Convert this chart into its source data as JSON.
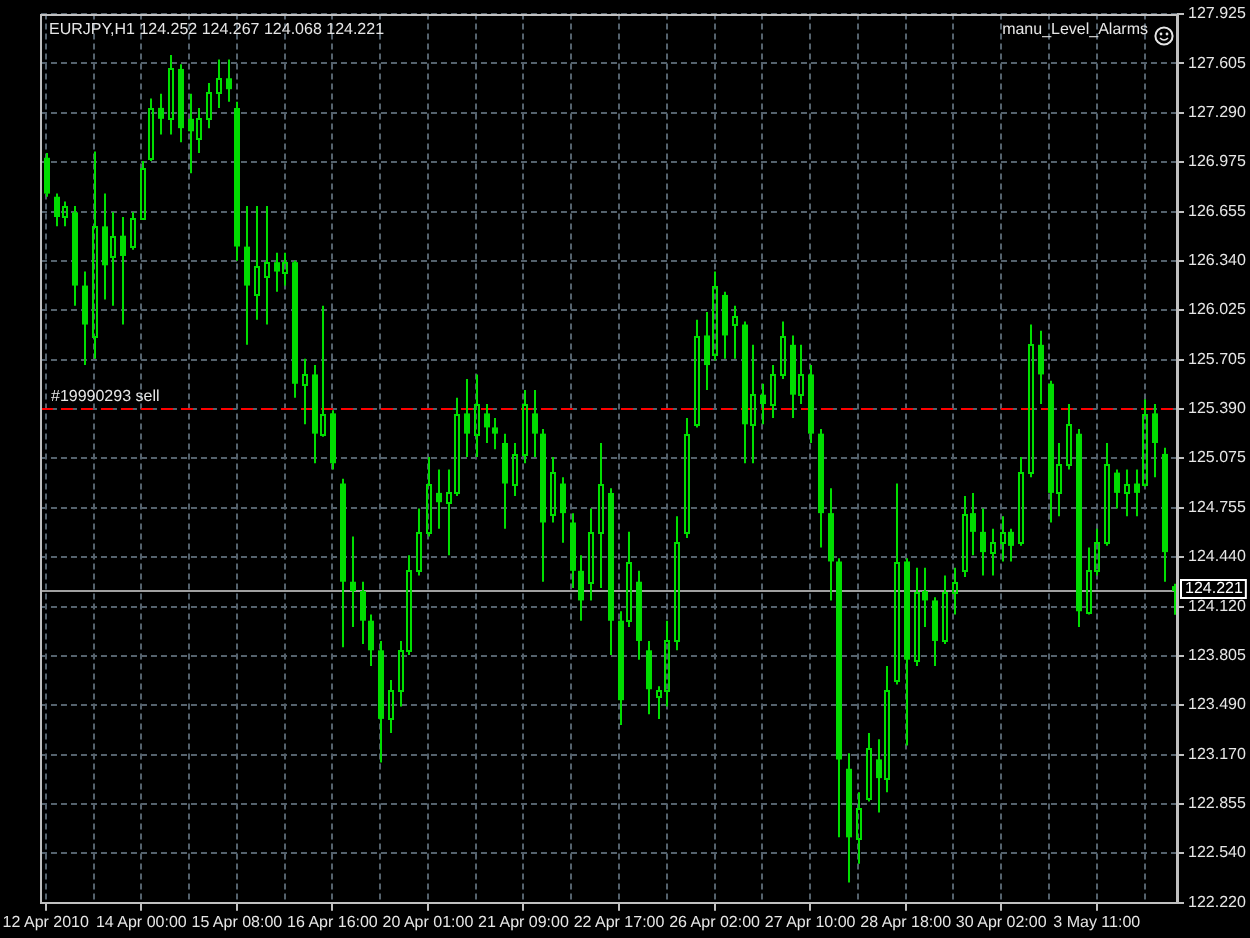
{
  "chart_data": {
    "type": "candlestick",
    "title": "EURJPY,H1 124.252 124.267 124.068 124.221",
    "annotations": [
      "manu_Level_Alarms"
    ],
    "categories": [
      "12 Apr 2010",
      null,
      null,
      null,
      null,
      null,
      null,
      null,
      null,
      null,
      "14 Apr 00:00",
      null,
      null,
      null,
      null,
      null,
      null,
      null,
      null,
      null,
      "15 Apr 08:00",
      null,
      null,
      null,
      null,
      null,
      null,
      null,
      null,
      null,
      "16 Apr 16:00",
      null,
      null,
      null,
      null,
      null,
      null,
      null,
      null,
      null,
      "20 Apr 01:00",
      null,
      null,
      null,
      null,
      null,
      null,
      null,
      null,
      null,
      "21 Apr 09:00",
      null,
      null,
      null,
      null,
      null,
      null,
      null,
      null,
      null,
      "22 Apr 17:00",
      null,
      null,
      null,
      null,
      null,
      null,
      null,
      null,
      null,
      "26 Apr 02:00",
      null,
      null,
      null,
      null,
      null,
      null,
      null,
      null,
      null,
      "27 Apr 10:00",
      null,
      null,
      null,
      null,
      null,
      null,
      null,
      null,
      null,
      "28 Apr 18:00",
      null,
      null,
      null,
      null,
      null,
      null,
      null,
      null,
      null,
      "30 Apr 02:00",
      null,
      null,
      null,
      null,
      null,
      null,
      null,
      null,
      null,
      "3 May 11:00",
      null,
      null,
      null,
      null,
      null,
      null,
      null,
      null
    ],
    "ohlc": [
      [
        127.0,
        127.03,
        126.75,
        126.77
      ],
      [
        126.75,
        126.77,
        126.56,
        126.62
      ],
      [
        126.63,
        126.72,
        126.56,
        126.69
      ],
      [
        126.65,
        126.69,
        126.05,
        126.18
      ],
      [
        126.18,
        126.27,
        125.67,
        125.93
      ],
      [
        125.86,
        127.04,
        125.71,
        126.56
      ],
      [
        126.56,
        126.77,
        126.09,
        126.31
      ],
      [
        126.37,
        126.65,
        126.05,
        126.5
      ],
      [
        126.5,
        126.62,
        125.93,
        126.37
      ],
      [
        126.43,
        126.65,
        126.41,
        126.61
      ],
      [
        126.62,
        126.98,
        126.6,
        126.94
      ],
      [
        127.0,
        127.38,
        126.98,
        127.32
      ],
      [
        127.32,
        127.41,
        127.15,
        127.25
      ],
      [
        127.25,
        127.66,
        127.15,
        127.57
      ],
      [
        127.57,
        127.6,
        127.1,
        127.19
      ],
      [
        127.25,
        127.41,
        126.9,
        127.17
      ],
      [
        127.13,
        127.32,
        127.03,
        127.25
      ],
      [
        127.25,
        127.48,
        127.19,
        127.42
      ],
      [
        127.42,
        127.63,
        127.32,
        127.51
      ],
      [
        127.51,
        127.63,
        127.36,
        127.44
      ],
      [
        127.32,
        127.36,
        126.34,
        126.43
      ],
      [
        126.43,
        126.69,
        125.8,
        126.18
      ],
      [
        126.12,
        126.69,
        125.96,
        126.31
      ],
      [
        126.24,
        126.69,
        125.93,
        126.33
      ],
      [
        126.33,
        126.39,
        126.14,
        126.27
      ],
      [
        126.27,
        126.39,
        126.18,
        126.33
      ],
      [
        126.33,
        126.34,
        125.46,
        125.55
      ],
      [
        125.55,
        125.71,
        125.29,
        125.61
      ],
      [
        125.61,
        125.67,
        125.04,
        125.23
      ],
      [
        125.23,
        126.05,
        125.21,
        125.36
      ],
      [
        125.36,
        125.38,
        125.0,
        125.04
      ],
      [
        124.91,
        124.94,
        123.86,
        124.28
      ],
      [
        124.28,
        124.57,
        123.99,
        124.22
      ],
      [
        124.22,
        124.28,
        123.88,
        124.03
      ],
      [
        124.03,
        124.07,
        123.74,
        123.84
      ],
      [
        123.84,
        123.9,
        123.12,
        123.4
      ],
      [
        123.4,
        123.65,
        123.31,
        123.59
      ],
      [
        123.59,
        123.9,
        123.48,
        123.84
      ],
      [
        123.84,
        124.45,
        123.81,
        124.35
      ],
      [
        124.35,
        124.75,
        124.32,
        124.6
      ],
      [
        124.6,
        125.08,
        124.57,
        124.91
      ],
      [
        124.85,
        125.0,
        124.62,
        124.79
      ],
      [
        124.79,
        125.0,
        124.45,
        124.85
      ],
      [
        124.85,
        125.46,
        124.83,
        125.36
      ],
      [
        125.36,
        125.58,
        125.08,
        125.23
      ],
      [
        125.23,
        125.61,
        125.08,
        125.42
      ],
      [
        125.36,
        125.42,
        125.17,
        125.27
      ],
      [
        125.27,
        125.33,
        125.13,
        125.23
      ],
      [
        125.17,
        125.23,
        124.62,
        124.91
      ],
      [
        124.91,
        125.17,
        124.83,
        125.1
      ],
      [
        125.1,
        125.51,
        125.04,
        125.42
      ],
      [
        125.36,
        125.51,
        125.08,
        125.23
      ],
      [
        125.23,
        125.26,
        124.28,
        124.66
      ],
      [
        124.72,
        125.08,
        124.66,
        124.98
      ],
      [
        124.91,
        124.95,
        124.53,
        124.72
      ],
      [
        124.66,
        124.72,
        124.24,
        124.35
      ],
      [
        124.35,
        124.45,
        124.03,
        124.16
      ],
      [
        124.28,
        124.75,
        124.16,
        124.6
      ],
      [
        124.6,
        125.17,
        124.24,
        124.91
      ],
      [
        124.85,
        124.88,
        123.81,
        124.03
      ],
      [
        124.03,
        124.09,
        123.36,
        123.52
      ],
      [
        124.03,
        124.6,
        123.99,
        124.41
      ],
      [
        124.28,
        124.35,
        123.78,
        123.9
      ],
      [
        123.84,
        123.9,
        123.43,
        123.59
      ],
      [
        123.55,
        123.61,
        123.4,
        123.59
      ],
      [
        123.59,
        124.03,
        123.48,
        123.9
      ],
      [
        123.9,
        124.7,
        123.84,
        124.53
      ],
      [
        124.6,
        125.33,
        124.56,
        125.23
      ],
      [
        125.29,
        125.96,
        125.27,
        125.86
      ],
      [
        125.86,
        126.01,
        125.51,
        125.67
      ],
      [
        125.74,
        126.27,
        125.7,
        126.18
      ],
      [
        126.12,
        126.14,
        125.71,
        125.86
      ],
      [
        125.93,
        126.05,
        125.71,
        125.99
      ],
      [
        125.93,
        125.95,
        125.04,
        125.29
      ],
      [
        125.29,
        125.8,
        125.04,
        125.48
      ],
      [
        125.48,
        125.55,
        125.29,
        125.42
      ],
      [
        125.42,
        125.67,
        125.33,
        125.61
      ],
      [
        125.61,
        125.95,
        125.58,
        125.86
      ],
      [
        125.8,
        125.86,
        125.33,
        125.48
      ],
      [
        125.48,
        125.8,
        125.42,
        125.61
      ],
      [
        125.61,
        125.67,
        125.17,
        125.23
      ],
      [
        125.23,
        125.26,
        124.5,
        124.72
      ],
      [
        124.72,
        124.88,
        124.16,
        124.41
      ],
      [
        124.41,
        124.43,
        122.64,
        123.14
      ],
      [
        123.08,
        123.18,
        122.35,
        122.64
      ],
      [
        122.64,
        122.93,
        122.47,
        122.83
      ],
      [
        122.89,
        123.31,
        122.87,
        123.21
      ],
      [
        123.14,
        123.27,
        122.8,
        123.02
      ],
      [
        123.02,
        123.74,
        122.93,
        123.59
      ],
      [
        123.65,
        124.91,
        123.62,
        124.41
      ],
      [
        124.41,
        124.43,
        123.23,
        123.78
      ],
      [
        123.78,
        124.37,
        123.74,
        124.22
      ],
      [
        124.22,
        124.37,
        123.99,
        124.16
      ],
      [
        124.16,
        124.18,
        123.74,
        123.9
      ],
      [
        123.9,
        124.32,
        123.88,
        124.22
      ],
      [
        124.22,
        124.37,
        124.07,
        124.28
      ],
      [
        124.35,
        124.83,
        124.31,
        124.72
      ],
      [
        124.72,
        124.85,
        124.45,
        124.6
      ],
      [
        124.6,
        124.75,
        124.32,
        124.47
      ],
      [
        124.47,
        124.62,
        124.32,
        124.53
      ],
      [
        124.53,
        124.7,
        124.41,
        124.6
      ],
      [
        124.6,
        124.62,
        124.41,
        124.51
      ],
      [
        124.53,
        125.08,
        124.51,
        124.98
      ],
      [
        124.98,
        125.93,
        124.95,
        125.8
      ],
      [
        125.8,
        125.89,
        125.42,
        125.61
      ],
      [
        125.55,
        125.57,
        124.66,
        124.85
      ],
      [
        124.85,
        125.17,
        124.7,
        125.04
      ],
      [
        125.04,
        125.42,
        125.0,
        125.29
      ],
      [
        125.23,
        125.26,
        123.99,
        124.09
      ],
      [
        124.09,
        124.5,
        124.07,
        124.35
      ],
      [
        124.35,
        124.62,
        124.32,
        124.53
      ],
      [
        124.53,
        125.17,
        124.51,
        125.04
      ],
      [
        124.98,
        125.0,
        124.75,
        124.85
      ],
      [
        124.85,
        125.0,
        124.7,
        124.91
      ],
      [
        124.91,
        125.0,
        124.7,
        124.85
      ],
      [
        124.91,
        125.45,
        124.89,
        125.36
      ],
      [
        125.36,
        125.42,
        124.95,
        125.17
      ],
      [
        125.1,
        125.14,
        124.28,
        124.47
      ],
      [
        124.252,
        124.267,
        124.068,
        124.221
      ]
    ],
    "color": "#00dd00",
    "ylim": [
      122.22,
      127.925
    ],
    "yticks": [
      127.925,
      127.605,
      {
        "value": 127.29,
        "label": "127.290"
      },
      126.975,
      126.655,
      {
        "value": 126.34,
        "label": "126.340"
      },
      126.025,
      125.705,
      {
        "value": 125.39,
        "label": "125.390"
      },
      125.075,
      124.755,
      {
        "value": 124.44,
        "label": "124.440"
      },
      {
        "value": 124.12,
        "label": "124.120"
      },
      123.805,
      {
        "value": 123.49,
        "label": "123.490"
      },
      {
        "value": 123.17,
        "label": "123.170"
      },
      122.855,
      {
        "value": 122.54,
        "label": "122.540"
      },
      {
        "value": 122.22,
        "label": "122.220"
      }
    ],
    "grid": true,
    "ref_lines": [
      {
        "axis": "y",
        "value": 125.39,
        "label": "#19990293 sell",
        "color": "#ff0000",
        "line_style": "dashed"
      },
      {
        "axis": "y",
        "value": 124.221,
        "label": "124.221",
        "color": "#a0a0a0",
        "line_style": "solid"
      }
    ]
  }
}
